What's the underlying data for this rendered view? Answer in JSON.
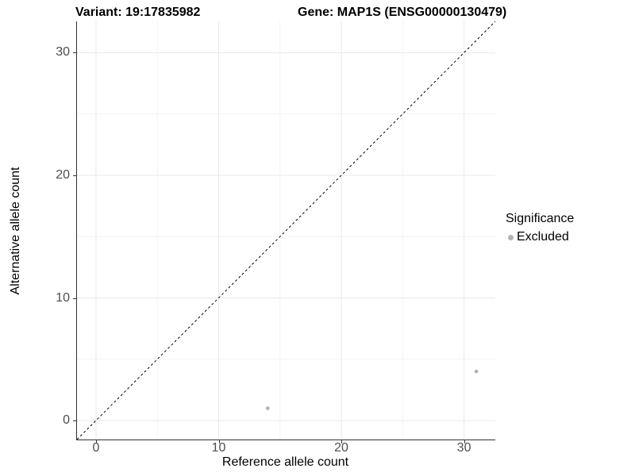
{
  "header": {
    "variant_title": "Variant: 19:17835982",
    "gene_title": "Gene: MAP1S (ENSG00000130479)"
  },
  "axes": {
    "x_label": "Reference allele count",
    "y_label": "Alternative allele count"
  },
  "legend": {
    "title": "Significance",
    "items": [
      {
        "label": "Excluded",
        "color": "#b4b4b4"
      }
    ]
  },
  "chart_data": {
    "type": "scatter",
    "title": "Variant: 19:17835982 | Gene: MAP1S (ENSG00000130479)",
    "xlabel": "Reference allele count",
    "ylabel": "Alternative allele count",
    "xlim": [
      -1.55,
      32.55
    ],
    "ylim": [
      -1.55,
      32.55
    ],
    "x_ticks": [
      0,
      10,
      20,
      30
    ],
    "y_ticks": [
      0,
      10,
      20,
      30
    ],
    "x_minor_ticks": [
      5,
      15,
      25
    ],
    "y_minor_ticks": [
      5,
      15,
      25
    ],
    "grid": true,
    "legend_position": "right",
    "series": [
      {
        "name": "Excluded",
        "color": "#b4b4b4",
        "point_radius": 2.4,
        "points": [
          {
            "x": 14,
            "y": 1
          },
          {
            "x": 31,
            "y": 4
          }
        ]
      }
    ],
    "reference_line": {
      "type": "identity",
      "style": "dashed",
      "color": "#000000"
    },
    "style": {
      "major_grid_color": "#e8e8e8",
      "minor_grid_color": "#f3f3f3",
      "axis_line_color": "#333333",
      "tick_label_color": "#4d4d4d",
      "background": "#ffffff"
    }
  }
}
